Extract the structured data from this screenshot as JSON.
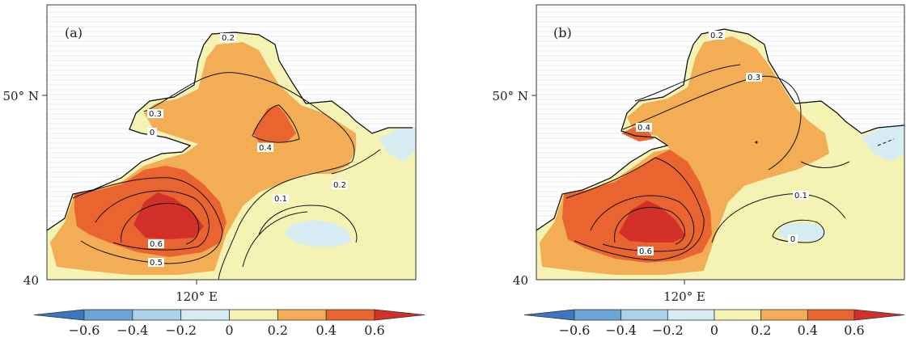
{
  "panels": [
    {
      "id": "a",
      "label": "(a)",
      "lat_ticks": [
        "50° N",
        "40"
      ],
      "lon_ticks": [
        "120° E"
      ],
      "contour_labels": [
        "0.2",
        "0.3",
        "0",
        "0.4",
        "0.2",
        "0.1",
        "0.6",
        "0.5"
      ]
    },
    {
      "id": "b",
      "label": "(b)",
      "lat_ticks": [
        "50° N",
        "40"
      ],
      "lon_ticks": [
        "120° E"
      ],
      "contour_labels": [
        "0.2",
        "0.3",
        "0.4",
        "0.1",
        "0",
        "0.6"
      ]
    }
  ],
  "colorbar": {
    "ticks": [
      "−0.6",
      "−0.4",
      "−0.2",
      "0",
      "0.2",
      "0.4",
      "0.6"
    ],
    "colors": [
      "#3b78c0",
      "#6aa5da",
      "#aad2ea",
      "#d6ecf2",
      "#f4f3b4",
      "#f2ad55",
      "#e9642f",
      "#d3302a"
    ]
  }
}
